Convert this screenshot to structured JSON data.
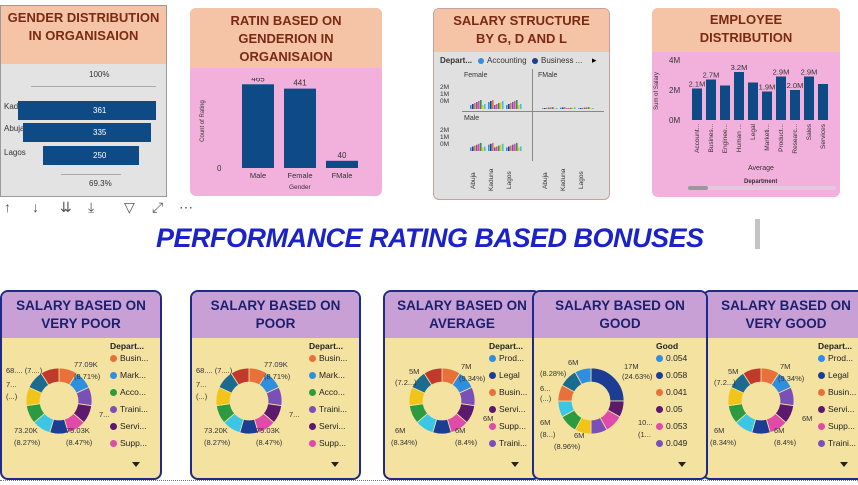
{
  "title": "PERFORMANCE RATING BASED BONUSES",
  "gender_card": {
    "title": "GENDER DISTRIBUTION IN ORGANISAION",
    "top_pct": "100%",
    "bottom_pct": "69.3%",
    "rows": [
      {
        "label": "Kaduna",
        "value": "361"
      },
      {
        "label": "Abuja",
        "value": "335"
      },
      {
        "label": "Lagos",
        "value": "250"
      }
    ]
  },
  "toolbar": {
    "icons": [
      "arrow-up-icon",
      "arrow-down-icon",
      "double-arrow-down-icon",
      "expand-hierarchy-icon",
      "filter-icon",
      "focus-mode-icon",
      "more-options-icon"
    ],
    "glyphs": [
      "↑",
      "↓",
      "⇊",
      "⤓",
      "▽",
      "⤢",
      "⋯"
    ]
  },
  "rating_card": {
    "title": "RATIN BASED ON GENDERION IN ORGANISAION",
    "ylabel": "Count of Rating",
    "xlabel": "Gender",
    "y_tick": "0"
  },
  "structure_card": {
    "title": "SALARY STRUCTURE BY G, D AND L",
    "legend_label": "Depart...",
    "legend_items": [
      "Accounting",
      "Business ..."
    ],
    "panel_female": "Female",
    "panel_fmale": "FMale",
    "panel_male": "Male",
    "yticks": [
      "2M",
      "1M",
      "0M"
    ],
    "xticks": [
      "Abuja",
      "Kaduna",
      "Lagos"
    ]
  },
  "employee_card": {
    "title": "EMPLOYEE DISTRIBUTION",
    "ylabel": "Sum of Salary",
    "xlabel": "Department",
    "yticks": [
      "4M",
      "2M",
      "0M"
    ],
    "average_label": "Average"
  },
  "chart_data": [
    {
      "type": "bar",
      "title": "RATIN BASED ON GENDERION IN ORGANISAION",
      "xlabel": "Gender",
      "ylabel": "Count of Rating",
      "categories": [
        "Male",
        "Female",
        "FMale"
      ],
      "values": [
        465,
        441,
        40
      ],
      "ylim": [
        0,
        500
      ]
    },
    {
      "type": "bar",
      "title": "EMPLOYEE DISTRIBUTION",
      "xlabel": "Department",
      "ylabel": "Sum of Salary",
      "categories": [
        "Account...",
        "Busines...",
        "Enginee...",
        "Human ...",
        "Legal",
        "Marketi...",
        "Product...",
        "Researc...",
        "Sales",
        "Services"
      ],
      "values": [
        2.1,
        2.7,
        2.3,
        3.2,
        2.5,
        1.9,
        2.9,
        2.0,
        2.9,
        2.4
      ],
      "data_labels": [
        "2.1M",
        "2.7M",
        "",
        "3.2M",
        "",
        "1.9M",
        "2.9M",
        "2.0M",
        "2.9M",
        ""
      ],
      "ylim": [
        0,
        4
      ],
      "grid": false
    }
  ],
  "bottom_cards": [
    {
      "title": "SALARY BASED ON VERY POOR",
      "legend_title": "Depart...",
      "legend": [
        {
          "label": "Busin...",
          "color": "#e8703a"
        },
        {
          "label": "Mark...",
          "color": "#2f8ee0"
        },
        {
          "label": "Acco...",
          "color": "#2c9a3f"
        },
        {
          "label": "Traini...",
          "color": "#7b4fb8"
        },
        {
          "label": "Servi...",
          "color": "#5b1a6e"
        },
        {
          "label": "Supp...",
          "color": "#e04aa8"
        }
      ],
      "labels": [
        "68.... (7....)",
        "7...",
        "(...)",
        "77.09K",
        "(8.71%)",
        "7...",
        "73.20K",
        "(8.27%)",
        "75.03K",
        "(8.47%)"
      ],
      "slices": [
        "#e8703a",
        "#2f8ee0",
        "#7b4fb8",
        "#5b1a6e",
        "#e04aa8",
        "#1c3d94",
        "#3cc6e6",
        "#2c9a3f",
        "#f0c419",
        "#1a6b8f",
        "#c0392b"
      ]
    },
    {
      "title": "SALARY BASED ON POOR",
      "legend_title": "Depart...",
      "legend": [
        {
          "label": "Busin...",
          "color": "#e8703a"
        },
        {
          "label": "Mark...",
          "color": "#2f8ee0"
        },
        {
          "label": "Acco...",
          "color": "#2c9a3f"
        },
        {
          "label": "Traini...",
          "color": "#7b4fb8"
        },
        {
          "label": "Servi...",
          "color": "#5b1a6e"
        },
        {
          "label": "Supp...",
          "color": "#e04aa8"
        }
      ],
      "labels": [
        "68.... (7....)",
        "7...",
        "(...)",
        "77.09K",
        "(8.71%)",
        "7...",
        "73.20K",
        "(8.27%)",
        "75.03K",
        "(8.47%)"
      ],
      "slices": [
        "#e8703a",
        "#2f8ee0",
        "#7b4fb8",
        "#5b1a6e",
        "#e04aa8",
        "#1c3d94",
        "#3cc6e6",
        "#2c9a3f",
        "#f0c419",
        "#1a6b8f",
        "#c0392b"
      ]
    },
    {
      "title": "SALARY BASED ON AVERAGE",
      "legend_title": "Depart...",
      "legend": [
        {
          "label": "Prod...",
          "color": "#2f8ee0"
        },
        {
          "label": "Legal",
          "color": "#1c3d94"
        },
        {
          "label": "Busin...",
          "color": "#e8703a"
        },
        {
          "label": "Servi...",
          "color": "#5b1a6e"
        },
        {
          "label": "Supp...",
          "color": "#e04aa8"
        },
        {
          "label": "Traini...",
          "color": "#7b4fb8"
        }
      ],
      "labels": [
        "5M",
        "(7.2...)",
        "7M",
        "(9.34%)",
        "6M",
        "6M",
        "(8.34%)",
        "6M",
        "(8.4%)"
      ],
      "slices": [
        "#e8703a",
        "#2f8ee0",
        "#7b4fb8",
        "#5b1a6e",
        "#e04aa8",
        "#1c3d94",
        "#3cc6e6",
        "#2c9a3f",
        "#f0c419",
        "#1a6b8f",
        "#c0392b"
      ]
    },
    {
      "title": "SALARY BASED ON GOOD",
      "legend_title": "Good",
      "legend": [
        {
          "label": "0.054",
          "color": "#2f8ee0"
        },
        {
          "label": "0.058",
          "color": "#1c3d94"
        },
        {
          "label": "0.041",
          "color": "#e8703a"
        },
        {
          "label": "0.05",
          "color": "#5b1a6e"
        },
        {
          "label": "0.053",
          "color": "#e04aa8"
        },
        {
          "label": "0.049",
          "color": "#7b4fb8"
        }
      ],
      "labels": [
        "6M",
        "(8.28%)",
        "6...",
        "(...)",
        "17M",
        "(24.63%)",
        "6M",
        "(8...)",
        "6M",
        "(8.96%)",
        "10...",
        "(1..."
      ],
      "slices": [
        "#1c3d94",
        "#5b1a6e",
        "#e04aa8",
        "#7b4fb8",
        "#f0c419",
        "#2c9a3f",
        "#3cc6e6",
        "#e8703a",
        "#1a6b8f",
        "#2f8ee0"
      ]
    },
    {
      "title": "SALARY BASED ON VERY GOOD",
      "legend_title": "Depart...",
      "legend": [
        {
          "label": "Prod...",
          "color": "#2f8ee0"
        },
        {
          "label": "Legal",
          "color": "#1c3d94"
        },
        {
          "label": "Busin...",
          "color": "#e8703a"
        },
        {
          "label": "Servi...",
          "color": "#5b1a6e"
        },
        {
          "label": "Supp...",
          "color": "#e04aa8"
        },
        {
          "label": "Traini...",
          "color": "#7b4fb8"
        }
      ],
      "labels": [
        "5M",
        "(7.2...)",
        "7M",
        "(9.34%)",
        "6M",
        "6M",
        "(8.34%)",
        "6M",
        "(8.4%)"
      ],
      "slices": [
        "#e8703a",
        "#2f8ee0",
        "#7b4fb8",
        "#5b1a6e",
        "#e04aa8",
        "#1c3d94",
        "#3cc6e6",
        "#2c9a3f",
        "#f0c419",
        "#1a6b8f",
        "#c0392b"
      ]
    }
  ]
}
